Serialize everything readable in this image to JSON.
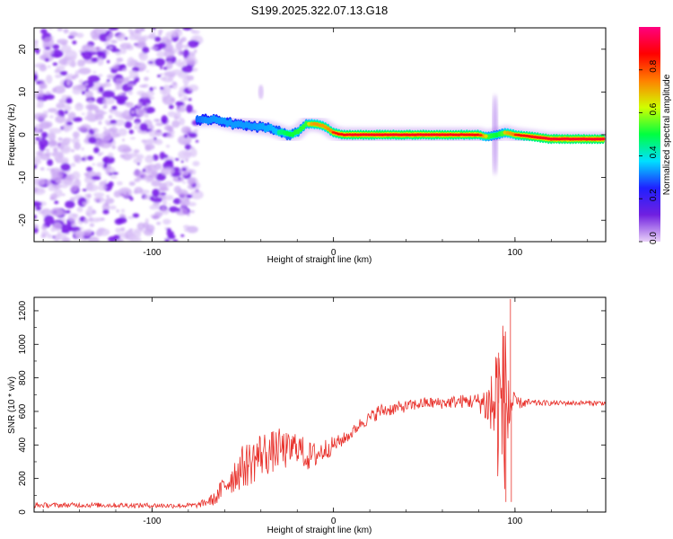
{
  "figure_title": "S199.2025.322.07.13.G18",
  "chart_data": [
    {
      "type": "heatmap",
      "title": "S199.2025.322.07.13.G18",
      "xlabel": "Height of straight line (km)",
      "ylabel": "Frequency (Hz)",
      "xlim": [
        -165,
        150
      ],
      "ylim": [
        -25,
        25
      ],
      "xticks": [
        -100,
        0,
        100
      ],
      "yticks": [
        -20,
        -10,
        0,
        10,
        20
      ],
      "xtick_labels": [
        "-100",
        "0",
        "100"
      ],
      "ytick_labels": [
        "-20",
        "-10",
        "0",
        "10",
        "20"
      ],
      "noise_region_x": [
        -165,
        -75
      ],
      "ridge": {
        "x": [
          -75,
          -65,
          -55,
          -45,
          -35,
          -25,
          -20,
          -15,
          -10,
          -5,
          0,
          5,
          10,
          20,
          40,
          60,
          80,
          85,
          90,
          95,
          100,
          110,
          120,
          150
        ],
        "freq": [
          3.5,
          3.5,
          2.5,
          2,
          1.5,
          0,
          0.5,
          2.5,
          2.5,
          2,
          0.5,
          0,
          0,
          0,
          0,
          0,
          0,
          -0.5,
          0,
          0.5,
          0,
          -0.5,
          -1,
          -1
        ],
        "amplitude": [
          0.3,
          0.35,
          0.35,
          0.35,
          0.4,
          0.5,
          0.55,
          0.6,
          0.8,
          0.75,
          0.85,
          0.9,
          0.95,
          0.95,
          0.95,
          0.95,
          0.9,
          0.6,
          0.5,
          0.7,
          0.85,
          0.95,
          1.0,
          1.0
        ]
      },
      "colorbar": {
        "label": "Normalized spectral amplitude",
        "range": [
          0,
          1
        ],
        "ticks": [
          0.0,
          0.2,
          0.4,
          0.6,
          0.8
        ],
        "tick_labels": [
          "0.0",
          "0.2",
          "0.4",
          "0.6",
          "0.8"
        ],
        "colors": [
          "#e8d0f8",
          "#7020e0",
          "#2020ff",
          "#00e0ff",
          "#00ff40",
          "#d0ff00",
          "#ff8000",
          "#ff0000",
          "#ff0080"
        ]
      }
    },
    {
      "type": "line",
      "xlabel": "Height of straight line (km)",
      "ylabel": "SNR (10 * v/v)",
      "xlim": [
        -165,
        150
      ],
      "ylim": [
        0,
        1280
      ],
      "xticks": [
        -100,
        0,
        100
      ],
      "yticks": [
        0,
        200,
        400,
        600,
        800,
        1000,
        1200
      ],
      "xtick_labels": [
        "-100",
        "0",
        "100"
      ],
      "ytick_labels": [
        "0",
        "200",
        "400",
        "600",
        "800",
        "1000",
        "1200"
      ],
      "color": "#e8302a",
      "series": [
        {
          "name": "SNR",
          "x": [
            -165,
            -140,
            -110,
            -90,
            -75,
            -65,
            -60,
            -55,
            -50,
            -45,
            -40,
            -35,
            -30,
            -25,
            -20,
            -15,
            -10,
            -5,
            0,
            5,
            10,
            15,
            20,
            25,
            30,
            40,
            50,
            60,
            70,
            80,
            85,
            88,
            90,
            92,
            95,
            97,
            100,
            110,
            120,
            130,
            140,
            150
          ],
          "y": [
            40,
            42,
            40,
            38,
            40,
            80,
            160,
            220,
            270,
            300,
            350,
            350,
            380,
            360,
            400,
            330,
            340,
            370,
            400,
            430,
            470,
            530,
            560,
            600,
            610,
            630,
            650,
            650,
            660,
            660,
            640,
            630,
            660,
            620,
            640,
            650,
            650,
            650,
            650,
            650,
            650,
            650
          ],
          "spread": [
            15,
            15,
            15,
            15,
            15,
            40,
            80,
            110,
            130,
            140,
            140,
            130,
            120,
            110,
            100,
            90,
            80,
            70,
            50,
            40,
            35,
            35,
            40,
            45,
            40,
            35,
            35,
            35,
            40,
            50,
            150,
            350,
            450,
            550,
            500,
            400,
            40,
            20,
            15,
            15,
            15,
            15
          ]
        }
      ],
      "peaks": [
        {
          "x": 97.5,
          "y": 1270
        },
        {
          "x": 94,
          "y": 1050
        },
        {
          "x": 91,
          "y": 950
        },
        {
          "x": 95,
          "y": 60
        },
        {
          "x": 98,
          "y": 60
        }
      ]
    }
  ]
}
